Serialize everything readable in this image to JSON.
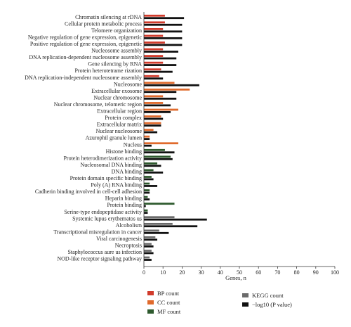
{
  "chart_data": {
    "type": "bar",
    "orientation": "horizontal",
    "categories": [
      "Chromatin silencing at rDNA",
      "Cellular protein metabolic process",
      "Telomere organization",
      "Negative regulation of gene expression, epigenetic",
      "Positive regulation of gene expression, epigenetic",
      "Nucleosome assembly",
      "DNA replication-dependent nucleosome assembly",
      "Gene silencing by RNA",
      "Protein heterotetrame rization",
      "DNA replication-independent nucleosome assembly",
      "Nucleosome",
      "Extracellular exosome",
      "Nuclear chromosome",
      "Nuclear chromosome, telomeric region",
      "Extracellular region",
      "Protein complex",
      "Extracellular matrix",
      "Nuclear nucleosome",
      "Azurophil granule lumen",
      "Nucleus",
      "Histone binding",
      "Protein heterodimerization activity",
      "Nucleosomal DNA binding",
      "DNA binding",
      "Protein domain specific binding",
      "Poly (A) RNA binding",
      "Cadherin binding involved in cell-cell adhesion",
      "Heparin binding",
      "Protein binding",
      "Serine-type endopeptidase activity",
      "Systemic lupus erythematos us",
      "Alcoholism",
      "Transcriptional misregulation in cancer",
      "Viral carcinogenesis",
      "Necroptosis",
      "Staphylococcus aure us infection",
      "NOD-like receptor signaling pathway"
    ],
    "groups": [
      {
        "type": "BP",
        "start": 0,
        "end": 9
      },
      {
        "type": "CC",
        "start": 10,
        "end": 19
      },
      {
        "type": "MF",
        "start": 20,
        "end": 29
      },
      {
        "type": "KEGG",
        "start": 30,
        "end": 36
      }
    ],
    "counts": [
      11,
      11,
      10,
      10,
      11,
      10,
      10,
      10,
      9,
      8,
      16,
      24,
      10,
      10,
      18,
      9,
      9,
      5,
      3,
      18,
      11,
      14,
      7,
      5,
      4,
      3,
      3,
      2,
      16,
      2,
      16,
      15,
      8,
      6,
      4,
      4,
      3
    ],
    "neglog10_p": [
      21,
      20,
      20,
      20,
      20,
      18,
      17,
      17,
      15,
      10,
      29,
      17,
      17,
      14,
      14,
      10,
      9,
      7,
      3,
      4,
      16,
      15,
      9,
      10,
      5,
      7,
      3,
      3,
      1,
      2,
      33,
      28,
      13,
      7,
      5,
      5,
      4
    ],
    "xlim": [
      0,
      100
    ],
    "xticks": [
      0,
      10,
      20,
      30,
      40,
      50,
      60,
      70,
      80,
      90,
      100
    ],
    "xlabel": "Genes, n",
    "legend": [
      {
        "key": "bp",
        "label": "BP count",
        "color": "#d13b2c"
      },
      {
        "key": "cc",
        "label": "CC count",
        "color": "#e06a2c"
      },
      {
        "key": "mf",
        "label": "MF count",
        "color": "#2e5a2e"
      },
      {
        "key": "kegg",
        "label": "KEGG count",
        "color": "#6b6b6b"
      },
      {
        "key": "p",
        "label": "−log10 (P value)",
        "color": "#111111"
      }
    ],
    "legend_position": "bottom",
    "grid": false
  }
}
